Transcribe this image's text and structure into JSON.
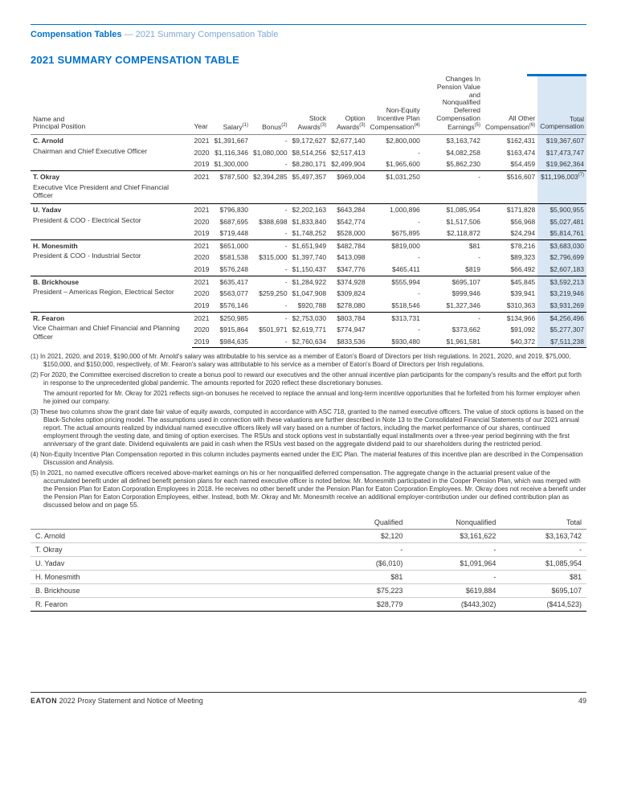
{
  "breadcrumb": {
    "bold": "Compensation Tables",
    "sep": " — ",
    "sub": "2021 Summary Compensation Table"
  },
  "title": "2021 SUMMARY COMPENSATION TABLE",
  "headers": {
    "name": "Name and\nPrincipal Position",
    "year": "Year",
    "salary": "Salary",
    "salary_sup": "(1)",
    "bonus": "Bonus",
    "bonus_sup": "(2)",
    "stock": "Stock\nAwards",
    "stock_sup": "(3)",
    "option": "Option\nAwards",
    "option_sup": "(3)",
    "neip": "Non-Equity\nIncentive Plan\nCompensation",
    "neip_sup": "(4)",
    "pension": "Changes In\nPension Value and\nNonqualified\nDeferred\nCompensation\nEarnings",
    "pension_sup": "(5)",
    "other": "All Other\nCompensation",
    "other_sup": "(6)",
    "total": "Total\nCompensation"
  },
  "execs": [
    {
      "name": "C. Arnold",
      "title": "Chairman and Chief Executive Officer",
      "rows": [
        {
          "year": "2021",
          "salary": "$1,391,667",
          "bonus": "-",
          "stock": "$9,172,627",
          "option": "$2,677,140",
          "neip": "$2,800,000",
          "pension": "$3,163,742",
          "other": "$162,431",
          "total": "$19,367,607"
        },
        {
          "year": "2020",
          "salary": "$1,116,346",
          "bonus": "$1,080,000",
          "stock": "$8,514,256",
          "option": "$2,517,413",
          "neip": "-",
          "pension": "$4,082,258",
          "other": "$163,474",
          "total": "$17,473,747"
        },
        {
          "year": "2019",
          "salary": "$1,300,000",
          "bonus": "-",
          "stock": "$8,280,171",
          "option": "$2,499,904",
          "neip": "$1,965,600",
          "pension": "$5,862,230",
          "other": "$54,459",
          "total": "$19,962,364"
        }
      ]
    },
    {
      "name": "T. Okray",
      "title": "Executive Vice President and Chief Financial Officer",
      "rows": [
        {
          "year": "2021",
          "salary": "$787,500",
          "bonus": "$2,394,285",
          "stock": "$5,497,357",
          "option": "$969,004",
          "neip": "$1,031,250",
          "pension": "-",
          "other": "$516,607",
          "total": "$11,196,003",
          "total_sup": "(7)"
        }
      ]
    },
    {
      "name": "U. Yadav",
      "title": "President & COO - Electrical Sector",
      "rows": [
        {
          "year": "2021",
          "salary": "$796,830",
          "bonus": "-",
          "stock": "$2,202,163",
          "option": "$643,284",
          "neip": "1,000,896",
          "pension": "$1,085,954",
          "other": "$171,828",
          "total": "$5,900,955"
        },
        {
          "year": "2020",
          "salary": "$687,695",
          "bonus": "$388,698",
          "stock": "$1,833,840",
          "option": "$542,774",
          "neip": "-",
          "pension": "$1,517,506",
          "other": "$56,968",
          "total": "$5,027,481"
        },
        {
          "year": "2019",
          "salary": "$719,448",
          "bonus": "-",
          "stock": "$1,748,252",
          "option": "$528,000",
          "neip": "$675,895",
          "pension": "$2,118,872",
          "other": "$24,294",
          "total": "$5,814,761"
        }
      ]
    },
    {
      "name": "H. Monesmith",
      "title": "President & COO - Industrial Sector",
      "rows": [
        {
          "year": "2021",
          "salary": "$651,000",
          "bonus": "-",
          "stock": "$1,651,949",
          "option": "$482,784",
          "neip": "$819,000",
          "pension": "$81",
          "other": "$78,216",
          "total": "$3,683,030"
        },
        {
          "year": "2020",
          "salary": "$581,538",
          "bonus": "$315,000",
          "stock": "$1,397,740",
          "option": "$413,098",
          "neip": "-",
          "pension": "-",
          "other": "$89,323",
          "total": "$2,796,699"
        },
        {
          "year": "2019",
          "salary": "$576,248",
          "bonus": "-",
          "stock": "$1,150,437",
          "option": "$347,776",
          "neip": "$465,411",
          "pension": "$819",
          "other": "$66,492",
          "total": "$2,607,183"
        }
      ]
    },
    {
      "name": "B. Brickhouse",
      "title": "President – Americas Region, Electrical Sector",
      "rows": [
        {
          "year": "2021",
          "salary": "$635,417",
          "bonus": "-",
          "stock": "$1,284,922",
          "option": "$374,928",
          "neip": "$555,994",
          "pension": "$695,107",
          "other": "$45,845",
          "total": "$3,592,213"
        },
        {
          "year": "2020",
          "salary": "$563,077",
          "bonus": "$259,250",
          "stock": "$1,047,908",
          "option": "$309,824",
          "neip": "-",
          "pension": "$999,946",
          "other": "$39,941",
          "total": "$3,219,946"
        },
        {
          "year": "2019",
          "salary": "$576,146",
          "bonus": "-",
          "stock": "$920,788",
          "option": "$278,080",
          "neip": "$518,546",
          "pension": "$1,327,346",
          "other": "$310,363",
          "total": "$3,931,269"
        }
      ]
    },
    {
      "name": "R. Fearon",
      "title": "Vice Chairman and Chief Financial and Planning Officer",
      "rows": [
        {
          "year": "2021",
          "salary": "$250,985",
          "bonus": "-",
          "stock": "$2,753,030",
          "option": "$803,784",
          "neip": "$313,731",
          "pension": "-",
          "other": "$134,966",
          "total": "$4,256,496"
        },
        {
          "year": "2020",
          "salary": "$915,864",
          "bonus": "$501,971",
          "stock": "$2,619,771",
          "option": "$774,947",
          "neip": "-",
          "pension": "$373,662",
          "other": "$91,092",
          "total": "$5,277,307"
        },
        {
          "year": "2019",
          "salary": "$984,635",
          "bonus": "-",
          "stock": "$2,760,634",
          "option": "$833,536",
          "neip": "$930,480",
          "pension": "$1,961,581",
          "other": "$40,372",
          "total": "$7,511,238"
        }
      ]
    }
  ],
  "footnotes": [
    "(1) In 2021, 2020, and 2019, $190,000 of Mr. Arnold's salary was attributable to his service as a member of Eaton's Board of Directors per Irish regulations. In 2021, 2020, and 2019, $75,000, $150,000, and $150,000, respectively, of Mr. Fearon's salary was attributable to his service as a member of Eaton's Board of Directors per Irish regulations.",
    "(2) For 2020, the Committee exercised discretion to create a bonus pool to reward our executives and the other annual incentive plan participants for the company's results and the effort put forth in response to the unprecedented global pandemic. The amounts reported for 2020 reflect these discretionary bonuses.",
    "The amount reported for Mr. Okray for 2021 reflects sign-on bonuses he received to replace the annual and long-term incentive opportunities that he forfeited from his former employer when he joined our company.",
    "(3) These two columns show the grant date fair value of equity awards, computed in accordance with ASC 718, granted to the named executive officers. The value of stock options is based on the Black-Scholes option pricing model. The assumptions used in connection with these valuations are further described in Note 13 to the Consolidated Financial Statements of our 2021 annual report. The actual amounts realized by individual named executive officers likely will vary based on a number of factors, including the market performance of our shares, continued employment through the vesting date, and timing of option exercises. The RSUs and stock options vest in substantially equal installments over a three-year period beginning with the first anniversary of the grant date. Dividend equivalents are paid in cash when the RSUs vest based on the aggregate dividend paid to our shareholders during the restricted period.",
    "(4) Non-Equity Incentive Plan Compensation reported in this column includes payments earned under the EIC Plan. The material features of this incentive plan are described in the Compensation Discussion and Analysis.",
    "(5) In 2021, no named executive officers received above-market earnings on his or her nonqualified deferred compensation. The aggregate change in the actuarial present value of the accumulated benefit under all defined benefit pension plans for each named executive officer is noted below. Mr. Monesmith participated in the Cooper Pension Plan, which was merged with the Pension Plan for Eaton Corporation Employees in 2018. He receives no other benefit under the Pension Plan for Eaton Corporation Employees. Mr. Okray does not receive a benefit under the Pension Plan for Eaton Corporation Employees, either.  Instead, both Mr. Okray and Mr. Monesmith receive an additional employer-contribution under our defined contribution plan as discussed below and on page 55."
  ],
  "pension": {
    "headers": [
      "",
      "Qualified",
      "Nonqualified",
      "Total"
    ],
    "rows": [
      {
        "name": "C. Arnold",
        "q": "$2,120",
        "nq": "$3,161,622",
        "t": "$3,163,742"
      },
      {
        "name": "T. Okray",
        "q": "-",
        "nq": "-",
        "t": "-"
      },
      {
        "name": "U. Yadav",
        "q": "($6,010)",
        "nq": "$1,091,964",
        "t": "$1,085,954"
      },
      {
        "name": "H. Monesmith",
        "q": "$81",
        "nq": "-",
        "t": "$81"
      },
      {
        "name": "B. Brickhouse",
        "q": "$75,223",
        "nq": "$619,884",
        "t": "$695,107"
      },
      {
        "name": "R. Fearon",
        "q": "$28,779",
        "nq": "($443,302)",
        "t": "($414,523)"
      }
    ]
  },
  "footer": {
    "brand": "EATON",
    "text": " 2022 Proxy Statement and Notice of Meeting",
    "page": "49"
  }
}
